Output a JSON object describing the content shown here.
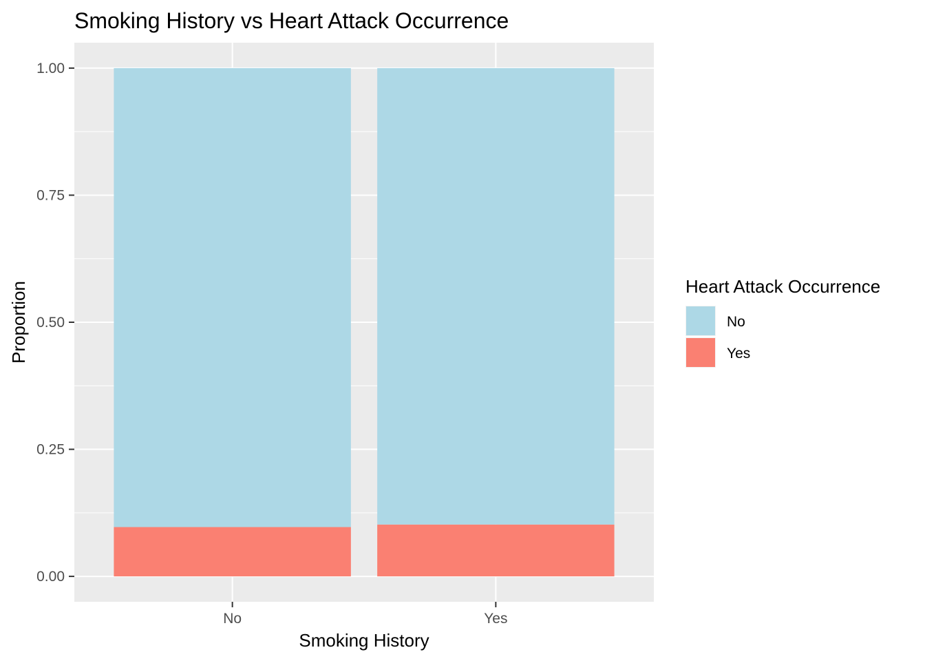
{
  "chart_data": {
    "type": "bar",
    "stacked": true,
    "title": "Smoking History vs Heart Attack Occurrence",
    "xlabel": "Smoking History",
    "ylabel": "Proportion",
    "categories": [
      "No",
      "Yes"
    ],
    "ylim": [
      -0.05,
      1.05
    ],
    "yticks": [
      0.0,
      0.25,
      0.5,
      0.75,
      1.0
    ],
    "ytick_labels": [
      "0.00",
      "0.25",
      "0.50",
      "0.75",
      "1.00"
    ],
    "series": [
      {
        "name": "Yes",
        "values": [
          0.097,
          0.102
        ],
        "color": "#fa8072"
      },
      {
        "name": "No",
        "values": [
          0.903,
          0.898
        ],
        "color": "#add8e6"
      }
    ],
    "legend": {
      "title": "Heart Attack Occurrence",
      "position": "right",
      "entries": [
        {
          "label": "No",
          "color": "#add8e6"
        },
        {
          "label": "Yes",
          "color": "#fa8072"
        }
      ]
    },
    "panel_background": "#ebebeb",
    "grid": true,
    "grid_color": "#ffffff"
  }
}
